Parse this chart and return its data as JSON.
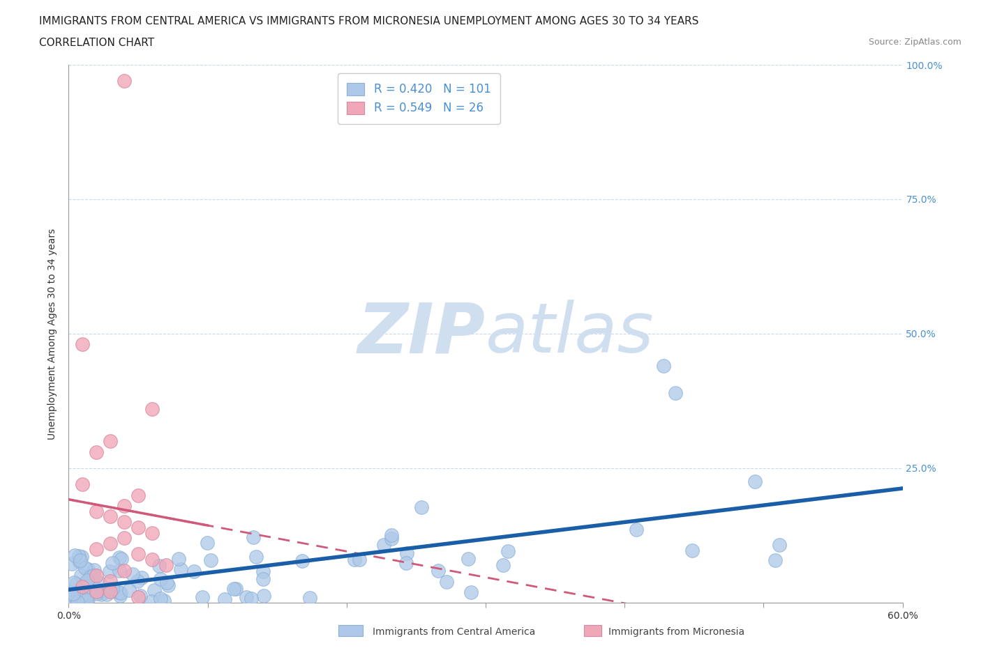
{
  "title_line1": "IMMIGRANTS FROM CENTRAL AMERICA VS IMMIGRANTS FROM MICRONESIA UNEMPLOYMENT AMONG AGES 30 TO 34 YEARS",
  "title_line2": "CORRELATION CHART",
  "source_text": "Source: ZipAtlas.com",
  "ylabel": "Unemployment Among Ages 30 to 34 years",
  "xlim": [
    0.0,
    0.6
  ],
  "ylim": [
    0.0,
    1.0
  ],
  "R_blue": 0.42,
  "N_blue": 101,
  "R_pink": 0.549,
  "N_pink": 26,
  "color_blue": "#adc8e8",
  "color_pink": "#f0a8b8",
  "color_blue_line": "#1a5ea8",
  "color_pink_line": "#d05878",
  "watermark_color": "#d0dff0",
  "background_color": "#ffffff",
  "title_fontsize": 11,
  "axis_label_fontsize": 10,
  "tick_fontsize": 10,
  "legend_fontsize": 12,
  "right_tick_color": "#4a90d0"
}
